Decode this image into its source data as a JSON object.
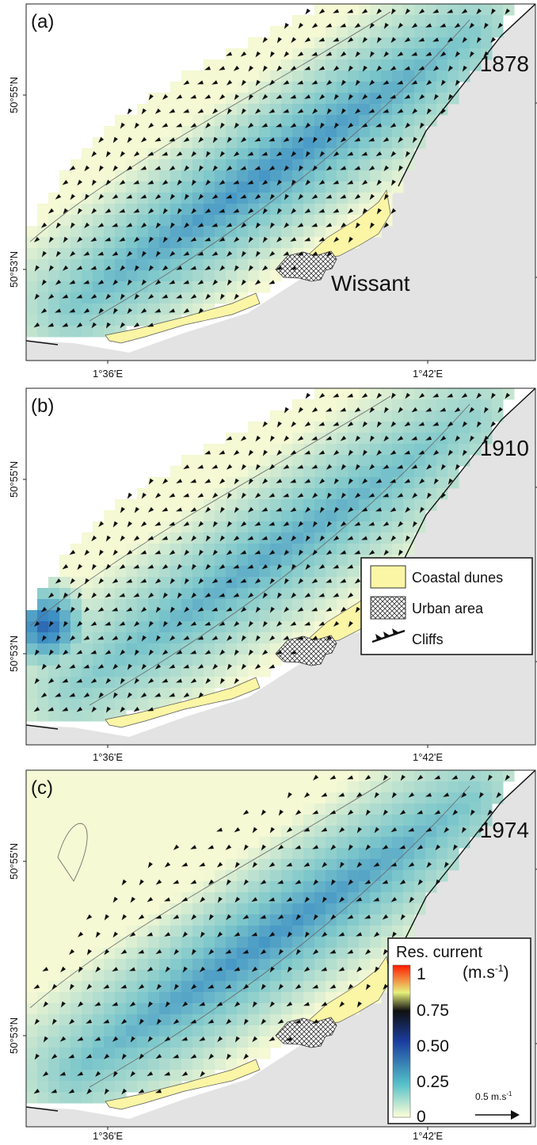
{
  "panels": [
    {
      "letter": "(a)",
      "year": "1878",
      "place_label": "Wissant",
      "lat_ticks": [
        "50°55'N",
        "50°53'N"
      ],
      "lon_ticks": [
        "1°36'E",
        "1°42'E"
      ],
      "current_strength": "moderate"
    },
    {
      "letter": "(b)",
      "year": "1910",
      "place_label": "",
      "lat_ticks": [
        "50°55'N",
        "50°53'N"
      ],
      "lon_ticks": [
        "1°36'E",
        "1°42'E"
      ],
      "current_strength": "strong-west"
    },
    {
      "letter": "(c)",
      "year": "1974",
      "place_label": "",
      "lat_ticks": [
        "50°55'N",
        "50°53'N"
      ],
      "lon_ticks": [
        "1°36'E",
        "1°42'E"
      ],
      "current_strength": "moderate"
    }
  ],
  "legend": {
    "items": [
      {
        "label": "Coastal dunes",
        "icon": "dune-swatch",
        "color": "#fbf6a5"
      },
      {
        "label": "Urban area",
        "icon": "crosshatch-swatch"
      },
      {
        "label": "Cliffs",
        "icon": "cliff-line-icon"
      }
    ]
  },
  "colorbar": {
    "title": "Res. current",
    "unit_main": "(m.s",
    "unit_sup": "-1",
    "unit_end": ")",
    "ticks": [
      "1",
      "0.75",
      "0.50",
      "0.25",
      "0"
    ],
    "scale_arrow_main": "0.5 m.s",
    "scale_arrow_sup": "-1",
    "colors": [
      "#ffffd8",
      "#54c0c9",
      "#1a3d9e",
      "#101010",
      "#e6f27a",
      "#ff1a00"
    ]
  },
  "colors": {
    "land": "#e3e3e3",
    "dunes": "#fbf6a5",
    "sea_low": "#f3f8cf",
    "sea_mid": "#7dc7cb",
    "sea_high": "#2b5fae"
  }
}
